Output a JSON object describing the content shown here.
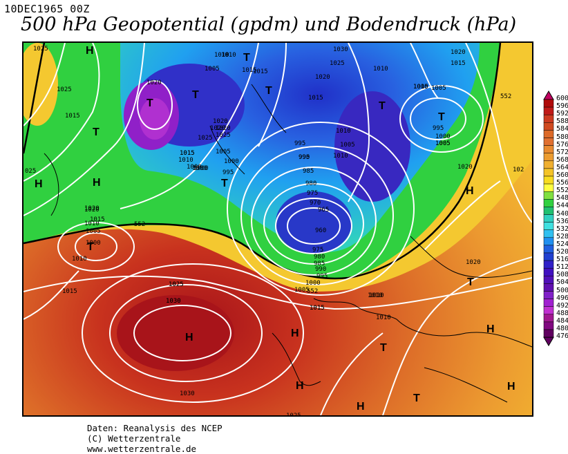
{
  "header": {
    "timestamp": "10DEC1965 00Z",
    "title": "500 hPa Geopotential (gpdm) und Bodendruck (hPa)"
  },
  "map": {
    "pressure_centers": [
      {
        "label": "H",
        "name": "azores-high"
      },
      {
        "label": "H",
        "name": "north-atlantic-high"
      },
      {
        "label": "H",
        "name": "greenland-high"
      },
      {
        "label": "H",
        "name": "north-edge-high"
      },
      {
        "label": "H",
        "name": "baltic-high"
      },
      {
        "label": "H",
        "name": "iberia-high"
      },
      {
        "label": "H",
        "name": "north-africa-high"
      },
      {
        "label": "H",
        "name": "balkan-high"
      },
      {
        "label": "H",
        "name": "turkey-high"
      },
      {
        "label": "H",
        "name": "east-med-high"
      },
      {
        "label": "T",
        "name": "greenland-low"
      },
      {
        "label": "T",
        "name": "iceland-low"
      },
      {
        "label": "T",
        "name": "west-atlantic-low"
      },
      {
        "label": "T",
        "name": "norwegian-sea-low"
      },
      {
        "label": "T",
        "name": "atlantic-mid-low"
      },
      {
        "label": "T",
        "name": "barents-low"
      },
      {
        "label": "T",
        "name": "russia-low"
      },
      {
        "label": "T",
        "name": "newfoundland-low"
      },
      {
        "label": "T",
        "name": "mediterranean-low"
      },
      {
        "label": "T",
        "name": "libya-low"
      },
      {
        "label": "T",
        "name": "black-sea-low"
      },
      {
        "label": "T",
        "name": "north-sea-low"
      }
    ],
    "isobar_labels": [
      "1025",
      "1025",
      "1015",
      "1010",
      "1010",
      "1005",
      "1015",
      "1020",
      "1015",
      "1000",
      "1025",
      "1020",
      "1015",
      "1010",
      "1005",
      "1000",
      "1020",
      "1020",
      "1015",
      "1010",
      "1005",
      "1000",
      "995",
      "1030",
      "1025",
      "1020",
      "1010",
      "1005",
      "1015",
      "995",
      "990",
      "985",
      "980",
      "975",
      "970",
      "965",
      "960",
      "975",
      "980",
      "985",
      "990",
      "995",
      "1000",
      "1005",
      "1010",
      "1015",
      "1025",
      "1030",
      "1030",
      "1025",
      "1020",
      "1015",
      "1010",
      "1005",
      "995",
      "1000",
      "1005",
      "1020",
      "1010",
      "1010",
      "1020",
      "1025",
      "102",
      "025",
      "1020",
      "1015",
      "1010",
      "1005",
      "1000",
      "1010",
      "1015",
      "1030",
      "1025",
      "1020",
      "1015",
      "1010",
      "1005",
      "1000",
      "995",
      "990",
      "552",
      "552",
      "552"
    ]
  },
  "legend": {
    "values": [
      600,
      596,
      592,
      588,
      584,
      580,
      576,
      572,
      568,
      564,
      560,
      556,
      552,
      548,
      544,
      540,
      536,
      532,
      528,
      524,
      520,
      516,
      512,
      508,
      504,
      500,
      496,
      492,
      488,
      484,
      480,
      476
    ],
    "colors": [
      "#c00060",
      "#b00a0a",
      "#c01a18",
      "#cc3a20",
      "#d04a20",
      "#dc6a28",
      "#e07030",
      "#e88a30",
      "#ec9c30",
      "#f0b030",
      "#f4c428",
      "#f8dc20",
      "#ffff40",
      "#80e040",
      "#30d040",
      "#20c070",
      "#30d0c0",
      "#40e0e0",
      "#30c0f0",
      "#2090f0",
      "#2060e0",
      "#2040d0",
      "#3020c8",
      "#4010c0",
      "#5010b8",
      "#6010b0",
      "#8020c8",
      "#a020d0",
      "#c030d0",
      "#a01890",
      "#800880",
      "#600060"
    ]
  },
  "credits": {
    "line1": "Daten: Reanalysis des NCEP",
    "line2": "(C) Wetterzentrale",
    "line3": "www.wetterzentrale.de"
  }
}
